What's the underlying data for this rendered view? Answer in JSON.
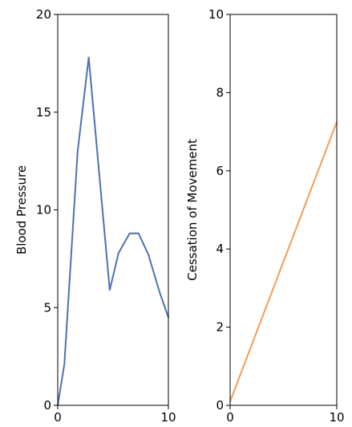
{
  "chart_data": [
    {
      "type": "line",
      "xlabel": "",
      "ylabel": "Blood Pressure",
      "xlim": [
        0,
        10
      ],
      "ylim": [
        0,
        20
      ],
      "xticks": [
        0,
        10
      ],
      "yticks": [
        0,
        5,
        10,
        15,
        20
      ],
      "grid": false,
      "series": [
        {
          "color": "#4c72b0",
          "x": [
            0,
            0.6,
            1.8,
            2.8,
            4.7,
            5.5,
            6.5,
            7.3,
            8.2,
            9.2,
            10
          ],
          "y": [
            0,
            2.1,
            13.0,
            17.8,
            5.9,
            7.8,
            8.8,
            8.8,
            7.7,
            5.8,
            4.5
          ]
        }
      ]
    },
    {
      "type": "line",
      "xlabel": "",
      "ylabel": "Cessation of Movement",
      "xlim": [
        0,
        10
      ],
      "ylim": [
        0,
        10
      ],
      "xticks": [
        0,
        10
      ],
      "yticks": [
        0,
        2,
        4,
        6,
        8,
        10
      ],
      "grid": false,
      "series": [
        {
          "color": "#f39c58",
          "x": [
            0,
            10
          ],
          "y": [
            0.1,
            7.25
          ]
        }
      ]
    }
  ]
}
